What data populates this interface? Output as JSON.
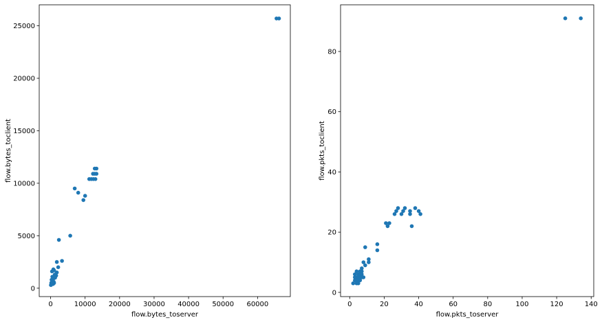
{
  "chart_data": [
    {
      "type": "scatter",
      "xlabel": "flow.bytes_toserver",
      "ylabel": "flow.bytes_toclient",
      "xlim": [
        -3300,
        69500
      ],
      "ylim": [
        -800,
        27000
      ],
      "xticks": [
        0,
        10000,
        20000,
        30000,
        40000,
        50000,
        60000
      ],
      "yticks": [
        0,
        5000,
        10000,
        15000,
        20000,
        25000
      ],
      "xtick_labels": [
        "0",
        "10000",
        "20000",
        "30000",
        "40000",
        "50000",
        "60000"
      ],
      "ytick_labels": [
        "0",
        "5000",
        "10000",
        "15000",
        "20000",
        "25000"
      ],
      "color": "#1f77b4",
      "grid": false,
      "points": [
        [
          65500,
          25700
        ],
        [
          66200,
          25700
        ],
        [
          12300,
          10900
        ],
        [
          12800,
          10900
        ],
        [
          13300,
          10900
        ],
        [
          12800,
          11400
        ],
        [
          13300,
          11400
        ],
        [
          11200,
          10400
        ],
        [
          11800,
          10400
        ],
        [
          12400,
          10400
        ],
        [
          13000,
          10400
        ],
        [
          7000,
          9500
        ],
        [
          8000,
          9100
        ],
        [
          10000,
          8800
        ],
        [
          9500,
          8400
        ],
        [
          5700,
          5000
        ],
        [
          2400,
          4600
        ],
        [
          3300,
          2600
        ],
        [
          1800,
          2500
        ],
        [
          2200,
          2000
        ],
        [
          1800,
          1500
        ],
        [
          1200,
          1300
        ],
        [
          1600,
          1200
        ],
        [
          800,
          1800
        ],
        [
          400,
          1600
        ],
        [
          1000,
          1700
        ],
        [
          600,
          1000
        ],
        [
          300,
          800
        ],
        [
          800,
          900
        ],
        [
          500,
          700
        ],
        [
          200,
          500
        ],
        [
          400,
          600
        ],
        [
          700,
          400
        ],
        [
          300,
          400
        ],
        [
          100,
          300
        ],
        [
          900,
          600
        ],
        [
          1300,
          1000
        ],
        [
          500,
          1100
        ],
        [
          1000,
          500
        ]
      ]
    },
    {
      "type": "scatter",
      "xlabel": "flow.pkts_toserver",
      "ylabel": "flow.pkts_toclient",
      "xlim": [
        -5.3,
        141.5
      ],
      "ylim": [
        -1.4,
        95.5
      ],
      "xticks": [
        0,
        20,
        40,
        60,
        80,
        100,
        120,
        140
      ],
      "yticks": [
        0,
        20,
        40,
        60,
        80
      ],
      "xtick_labels": [
        "0",
        "20",
        "40",
        "60",
        "80",
        "100",
        "120",
        "140"
      ],
      "ytick_labels": [
        "0",
        "20",
        "40",
        "60",
        "80"
      ],
      "color": "#1f77b4",
      "grid": false,
      "points": [
        [
          125,
          91
        ],
        [
          134,
          91
        ],
        [
          21,
          23
        ],
        [
          22,
          22
        ],
        [
          23,
          23
        ],
        [
          26,
          26
        ],
        [
          27,
          27
        ],
        [
          28,
          28
        ],
        [
          30,
          26
        ],
        [
          31,
          27
        ],
        [
          32,
          28
        ],
        [
          35,
          26
        ],
        [
          35,
          27
        ],
        [
          36,
          22
        ],
        [
          38,
          28
        ],
        [
          40,
          27
        ],
        [
          41,
          26
        ],
        [
          16,
          16
        ],
        [
          16,
          14
        ],
        [
          9,
          15
        ],
        [
          8,
          10
        ],
        [
          9,
          9
        ],
        [
          11,
          10
        ],
        [
          11,
          11
        ],
        [
          2,
          3
        ],
        [
          3,
          4
        ],
        [
          4,
          5
        ],
        [
          5,
          6
        ],
        [
          6,
          7
        ],
        [
          3,
          5
        ],
        [
          4,
          3
        ],
        [
          5,
          4
        ],
        [
          6,
          5
        ],
        [
          7,
          6
        ],
        [
          4,
          7
        ],
        [
          5,
          3
        ],
        [
          6,
          4
        ],
        [
          7,
          5
        ],
        [
          8,
          5
        ],
        [
          3,
          6
        ],
        [
          4,
          4
        ],
        [
          5,
          5
        ],
        [
          6,
          6
        ],
        [
          7,
          7
        ],
        [
          7,
          8
        ]
      ]
    }
  ]
}
